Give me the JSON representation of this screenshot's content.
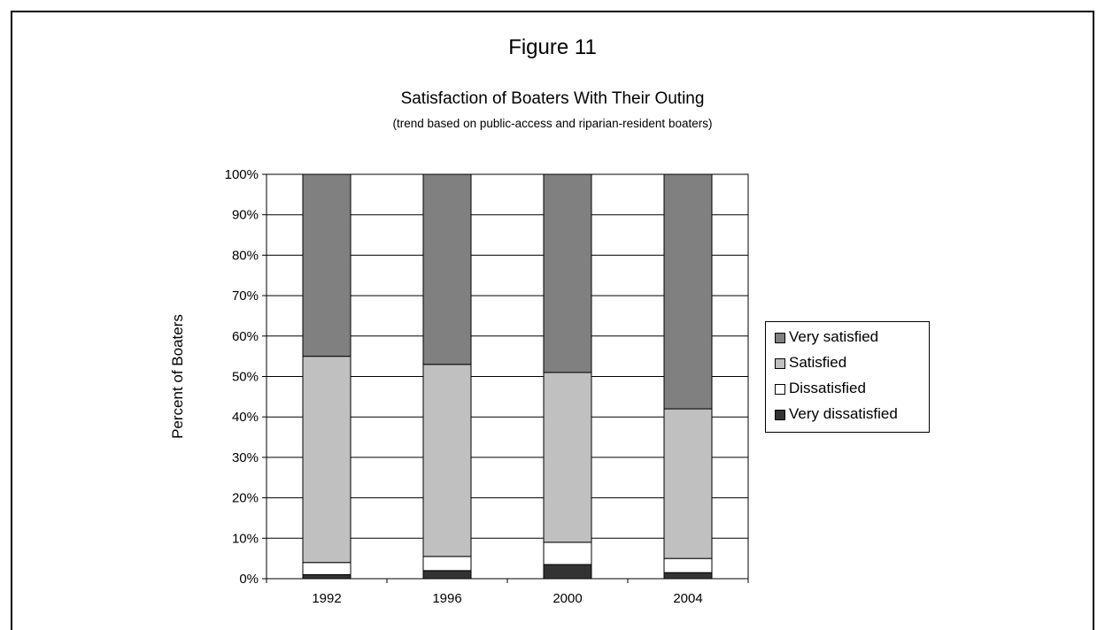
{
  "figure_label": "Figure 11",
  "chart_data": {
    "type": "bar",
    "stacked": true,
    "title": "Satisfaction of Boaters With Their Outing",
    "subtitle": "(trend based on public-access and riparian-resident boaters)",
    "xlabel": "",
    "ylabel": "Percent of Boaters",
    "ylim": [
      0,
      100
    ],
    "yticks": [
      "0%",
      "10%",
      "20%",
      "30%",
      "40%",
      "50%",
      "60%",
      "70%",
      "80%",
      "90%",
      "100%"
    ],
    "grid": true,
    "legend_position": "right",
    "categories": [
      "1992",
      "1996",
      "2000",
      "2004"
    ],
    "series": [
      {
        "name": "Very dissatisfied",
        "color": "#333333",
        "values": [
          1,
          2,
          3.5,
          1.5
        ]
      },
      {
        "name": "Dissatisfied",
        "color": "#ffffff",
        "values": [
          3,
          3.5,
          5.5,
          3.5
        ]
      },
      {
        "name": "Satisfied",
        "color": "#c0c0c0",
        "values": [
          51,
          47.5,
          42,
          37
        ]
      },
      {
        "name": "Very satisfied",
        "color": "#808080",
        "values": [
          45,
          47,
          49,
          58
        ]
      }
    ],
    "legend_order": [
      "Very satisfied",
      "Satisfied",
      "Dissatisfied",
      "Very dissatisfied"
    ]
  }
}
